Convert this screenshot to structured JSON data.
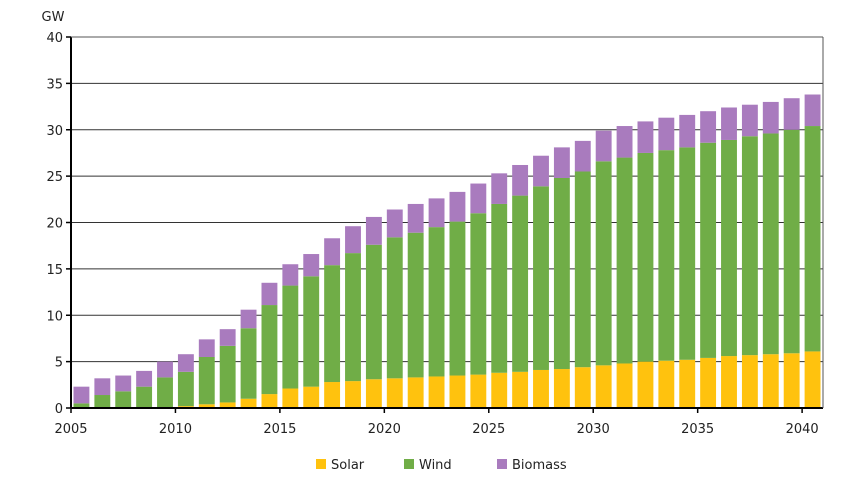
{
  "chart_data": {
    "type": "bar",
    "stacked": true,
    "ylabel": "GW",
    "ylim": [
      0,
      40
    ],
    "yticks": [
      0,
      5,
      10,
      15,
      20,
      25,
      30,
      35,
      40
    ],
    "grid": true,
    "legend_position": "bottom",
    "categories": [
      2005,
      2006,
      2007,
      2008,
      2009,
      2010,
      2011,
      2012,
      2013,
      2014,
      2015,
      2016,
      2017,
      2018,
      2019,
      2020,
      2021,
      2022,
      2023,
      2024,
      2025,
      2026,
      2027,
      2028,
      2029,
      2030,
      2031,
      2032,
      2033,
      2034,
      2035,
      2036,
      2037,
      2038,
      2039,
      2040
    ],
    "xtick_labels": [
      "2005",
      "2010",
      "2015",
      "2020",
      "2025",
      "2030",
      "2035",
      "2040"
    ],
    "series": [
      {
        "name": "Solar",
        "color": "#FFC20E",
        "values": [
          0,
          0,
          0,
          0,
          0,
          0.2,
          0.4,
          0.6,
          1.0,
          1.5,
          2.1,
          2.3,
          2.8,
          2.9,
          3.1,
          3.2,
          3.3,
          3.4,
          3.5,
          3.6,
          3.8,
          3.9,
          4.1,
          4.2,
          4.4,
          4.6,
          4.8,
          5.0,
          5.1,
          5.2,
          5.4,
          5.6,
          5.7,
          5.8,
          5.9,
          6.1
        ]
      },
      {
        "name": "Wind",
        "color": "#70AD47",
        "values": [
          0.5,
          1.4,
          1.8,
          2.3,
          3.3,
          3.7,
          5.1,
          6.1,
          7.6,
          9.6,
          11.1,
          11.9,
          12.6,
          13.8,
          14.5,
          15.2,
          15.6,
          16.1,
          16.6,
          17.4,
          18.2,
          19.0,
          19.8,
          20.6,
          21.1,
          22.0,
          22.2,
          22.5,
          22.7,
          22.9,
          23.2,
          23.3,
          23.6,
          23.8,
          24.1,
          24.3
        ]
      },
      {
        "name": "Biomass",
        "color": "#A97BBE",
        "values": [
          1.8,
          1.8,
          1.7,
          1.7,
          1.7,
          1.9,
          1.9,
          1.8,
          2.0,
          2.4,
          2.3,
          2.4,
          2.9,
          2.9,
          3.0,
          3.0,
          3.1,
          3.1,
          3.2,
          3.2,
          3.3,
          3.3,
          3.3,
          3.3,
          3.3,
          3.3,
          3.4,
          3.4,
          3.5,
          3.5,
          3.4,
          3.5,
          3.4,
          3.4,
          3.4,
          3.4
        ]
      }
    ]
  }
}
